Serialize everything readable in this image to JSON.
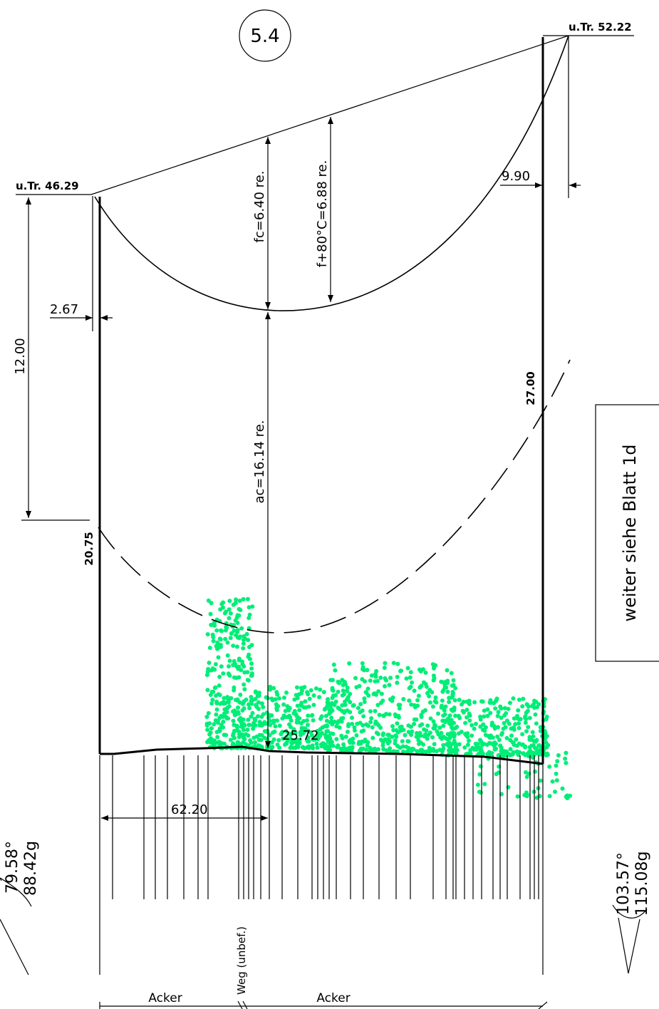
{
  "section_id": "5.4",
  "towers": {
    "left": {
      "label": "u.Tr. 46.29",
      "height_label": "20.75",
      "offset_label": "2.67"
    },
    "right": {
      "label": "u.Tr. 52.22",
      "height_label": "27.00",
      "offset_label": "9.90"
    }
  },
  "dimensions": {
    "fc": "fc=6.40 re.",
    "f80": "f+80°C=6.88 re.",
    "ac": "ac=16.14 re.",
    "vertical_12": "12.00",
    "ground_elevation": "25.72",
    "horizontal": "62.20"
  },
  "angles": {
    "left": {
      "deg": "79.58°",
      "gon": "88.42g"
    },
    "right": {
      "deg": "103.57°",
      "gon": "115.08g"
    }
  },
  "note": "weiter siehe Blatt 1d",
  "land_use": {
    "left": "Acker",
    "road": "Weg (unbef.)",
    "right": "Acker"
  },
  "colors": {
    "vegetation": "#00ee77",
    "lines": "#000000"
  }
}
